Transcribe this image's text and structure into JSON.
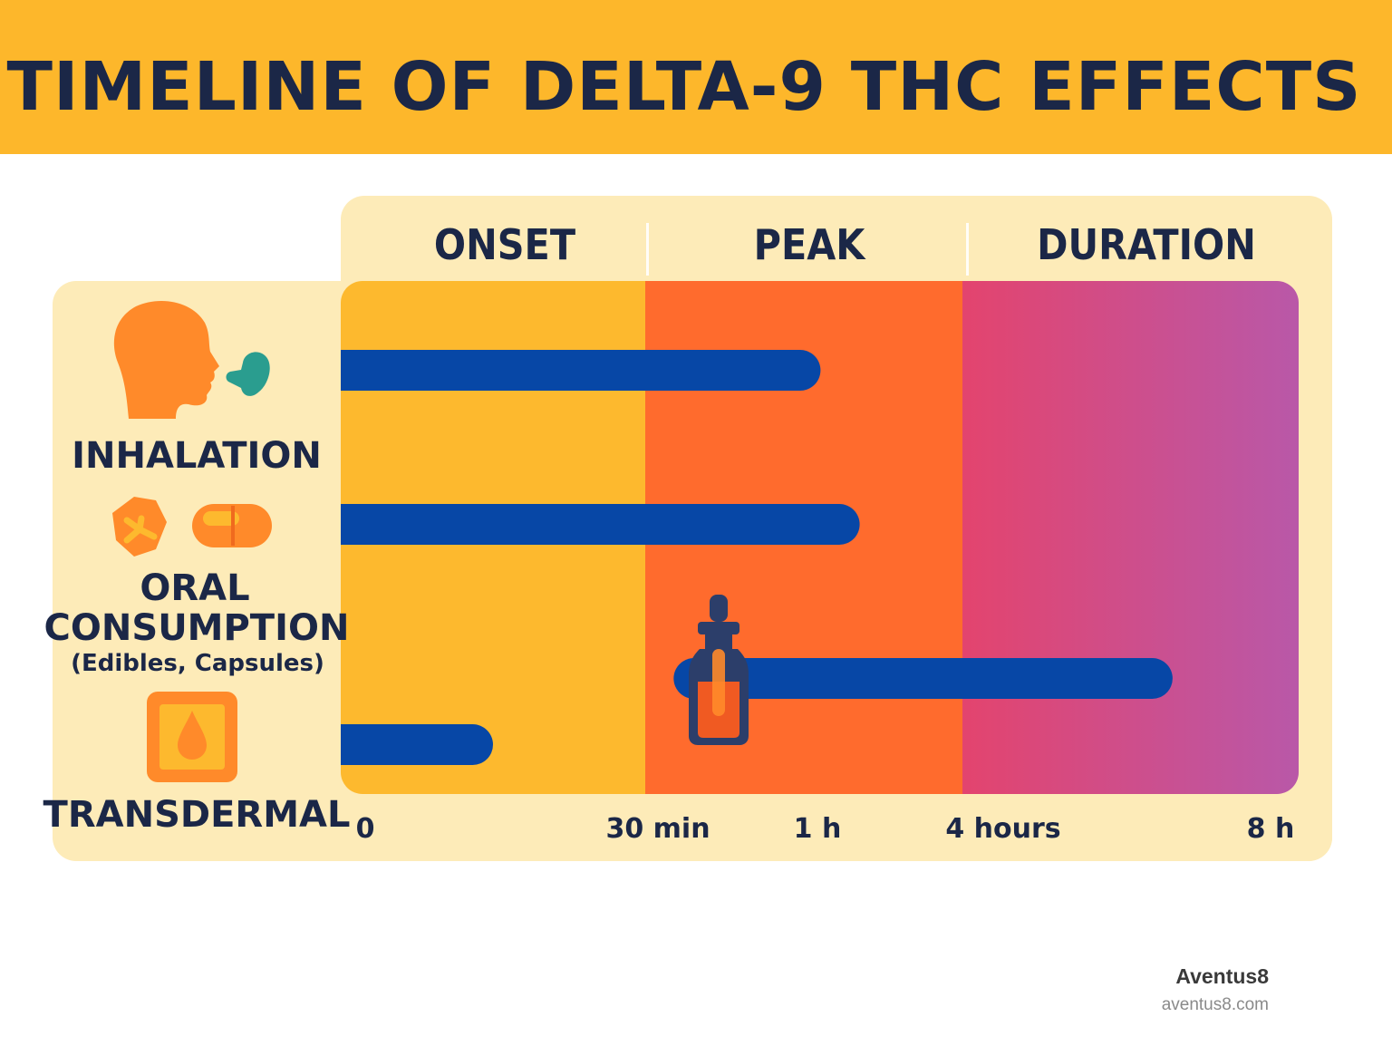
{
  "title": "TIMELINE OF DELTA-9 THC EFFECTS",
  "brand": {
    "name": "Aventus8",
    "url": "aventus8.com"
  },
  "colors": {
    "banner": "#FDB72B",
    "panel": "#FDEBB8",
    "onset": "#FDB92E",
    "peak": "#FF6B2D",
    "duration_start": "#E3446E",
    "duration_end": "#B958A8",
    "bar": "#0747A6",
    "text": "#1B2747",
    "icon_orange": "#FF8A2A",
    "icon_teal": "#2A9D8F"
  },
  "chart_data": {
    "type": "timeline",
    "phases": [
      {
        "name": "ONSET",
        "from": "0",
        "to": "30 min"
      },
      {
        "name": "PEAK",
        "from": "30 min",
        "to": "4 hours"
      },
      {
        "name": "DURATION",
        "from": "4 hours",
        "to": "8 h"
      }
    ],
    "x_ticks": [
      "0",
      "30 min",
      "1 h",
      "4 hours",
      "8 h"
    ],
    "routes": [
      {
        "name": "INHALATION",
        "sublabel": "",
        "icon": "head-exhaling-icon",
        "start": "0",
        "end": "≈1.1 h"
      },
      {
        "name": "ORAL CONSUMPTION",
        "sublabel": "(Edibles, Capsules)",
        "icon": "gummy-capsule-icon",
        "start": "0",
        "end": "≈1.9 h"
      },
      {
        "name": "TINCTURE",
        "sublabel": "",
        "icon": "dropper-bottle-icon",
        "start": "≈35 min",
        "end": "≈6.5 h",
        "label_visible": false
      },
      {
        "name": "TRANSDERMAL",
        "sublabel": "",
        "icon": "patch-drop-icon",
        "start": "0",
        "end": "≈15 min"
      }
    ]
  }
}
